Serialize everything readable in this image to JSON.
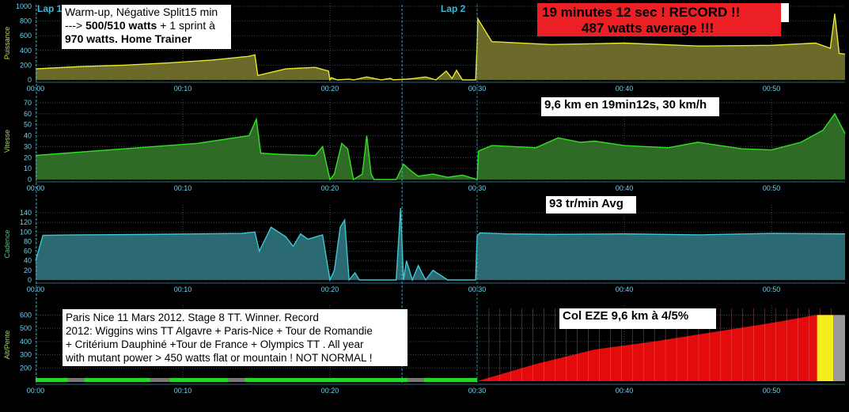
{
  "colors": {
    "background": "#000000",
    "grid": "#3e5157",
    "axis": "#2c6a82",
    "tick_label": "#6ad3f3",
    "lap_line": "#3fb8d8",
    "power_fill": "#6b6a2a",
    "power_line": "#e8e831",
    "speed_fill": "#2f6b26",
    "speed_line": "#33e023",
    "cad_fill": "#2b6a72",
    "cad_line": "#3cc7d2",
    "alt_fill": "#e30b0b",
    "alt_bar_green": "#26d629",
    "alt_bar_gray": "#777777",
    "yellow_block": "#f4ee1d",
    "record_box": "#ec2024"
  },
  "laps": {
    "lap1": "Lap 1",
    "lap2": "Lap 2",
    "lap2_time_min": 24.9
  },
  "time_ticks": [
    "00:00",
    "00:10",
    "00:20",
    "00:30",
    "00:40",
    "00:50"
  ],
  "annotations": {
    "power_line1": "Warm-up, Négative Split15 min",
    "power_line2a": "---> ",
    "power_line2b": "500/510 watts",
    "power_line2c": " + 1 sprint à",
    "power_line3a": "970 watts.",
    "power_line3b": " Home Trainer",
    "record_line1": "19 minutes 12 sec ! RECORD !!",
    "record_line2": "487 watts average !!!",
    "speed": "9,6 km en 19min12s, 30 km/h",
    "cadence": "93 tr/min Avg",
    "paris_line1": "Paris Nice 11 Mars 2012. Stage 8 TT. Winner. Record",
    "paris_line2": "2012: Wiggins wins TT Algavre + Paris-Nice + Tour de Romandie",
    "paris_line3": "+ Critérium Dauphiné +Tour de France + Olympics TT . All year",
    "paris_line4": "with mutant power > 450 watts flat or mountain ! NOT NORMAL !",
    "col": "Col EZE 9,6 km à 4/5%"
  },
  "chart_data": [
    {
      "type": "area",
      "ylabel": "Puissance",
      "ylim": [
        0,
        1000
      ],
      "yticks": [
        "0",
        "200",
        "400",
        "600",
        "800",
        "1000"
      ],
      "xlim_min": [
        0,
        55
      ],
      "x": [
        0,
        1,
        3,
        6,
        9,
        12,
        14.5,
        14.9,
        15.1,
        17,
        19,
        19.9,
        20,
        20.1,
        20.5,
        21.3,
        21.6,
        22.5,
        23.5,
        24.1,
        24.3,
        25.2,
        25.7,
        26.5,
        27.2,
        27.9,
        28.3,
        28.6,
        29,
        29.9,
        30,
        30.05,
        31,
        35,
        40,
        45,
        50,
        53,
        54,
        54.3,
        54.6,
        55
      ],
      "y": [
        150,
        160,
        180,
        200,
        230,
        270,
        320,
        340,
        60,
        150,
        170,
        120,
        0,
        30,
        0,
        10,
        0,
        40,
        0,
        20,
        0,
        10,
        20,
        40,
        0,
        120,
        20,
        130,
        0,
        0,
        500,
        830,
        520,
        480,
        500,
        460,
        470,
        500,
        430,
        900,
        360,
        350
      ]
    },
    {
      "type": "area",
      "ylabel": "Vitesse",
      "ylim": [
        0,
        70
      ],
      "yticks": [
        "0",
        "10",
        "20",
        "30",
        "40",
        "50",
        "60",
        "70"
      ],
      "xlim_min": [
        0,
        55
      ],
      "x": [
        0,
        2,
        5,
        8,
        11,
        13,
        14.5,
        15,
        15.3,
        16.5,
        19,
        19.5,
        20,
        20.3,
        20.8,
        21.2,
        21.6,
        22.2,
        22.5,
        22.8,
        23,
        24.5,
        25,
        25.5,
        26,
        27,
        28,
        29,
        30,
        30.1,
        31,
        34,
        35.5,
        37,
        38,
        40,
        43,
        45,
        48,
        50,
        52,
        53.5,
        54.3,
        55
      ],
      "y": [
        22,
        24,
        27,
        30,
        33,
        37,
        40,
        55,
        24,
        23,
        22,
        30,
        0,
        5,
        33,
        28,
        0,
        5,
        40,
        5,
        0,
        0,
        14,
        8,
        3,
        5,
        2,
        4,
        0,
        26,
        31,
        29,
        38,
        34,
        35,
        31,
        29,
        34,
        28,
        27,
        34,
        45,
        60,
        42
      ]
    },
    {
      "type": "area",
      "ylabel": "Cadence",
      "ylim": [
        0,
        150
      ],
      "yticks": [
        "0",
        "20",
        "40",
        "60",
        "80",
        "100",
        "120",
        "140"
      ],
      "xlim_min": [
        0,
        55
      ],
      "x": [
        0,
        0.5,
        3,
        8,
        14,
        14.9,
        15.2,
        16,
        17,
        17.5,
        18,
        18.5,
        19.5,
        20,
        20.3,
        20.7,
        21,
        21.3,
        21.7,
        22,
        23,
        24,
        24.5,
        24.8,
        25,
        25.2,
        25.6,
        26,
        26.5,
        27,
        28,
        29.9,
        30,
        30.2,
        32,
        35,
        40,
        45,
        50,
        55
      ],
      "y": [
        40,
        93,
        94,
        95,
        97,
        100,
        60,
        110,
        90,
        70,
        96,
        85,
        94,
        0,
        20,
        110,
        125,
        0,
        15,
        0,
        0,
        0,
        0,
        150,
        0,
        40,
        0,
        30,
        0,
        20,
        0,
        0,
        92,
        98,
        96,
        95,
        96,
        94,
        97,
        96
      ]
    },
    {
      "type": "area",
      "ylabel": "Alt/Pente",
      "ylim": [
        100,
        650
      ],
      "yticks": [
        "200",
        "300",
        "400",
        "500",
        "600"
      ],
      "xlim_min": [
        0,
        55
      ],
      "x": [
        30,
        34,
        38,
        42,
        46,
        50,
        53,
        54.5
      ],
      "y": [
        100,
        230,
        340,
        400,
        470,
        540,
        600,
        600
      ]
    }
  ]
}
